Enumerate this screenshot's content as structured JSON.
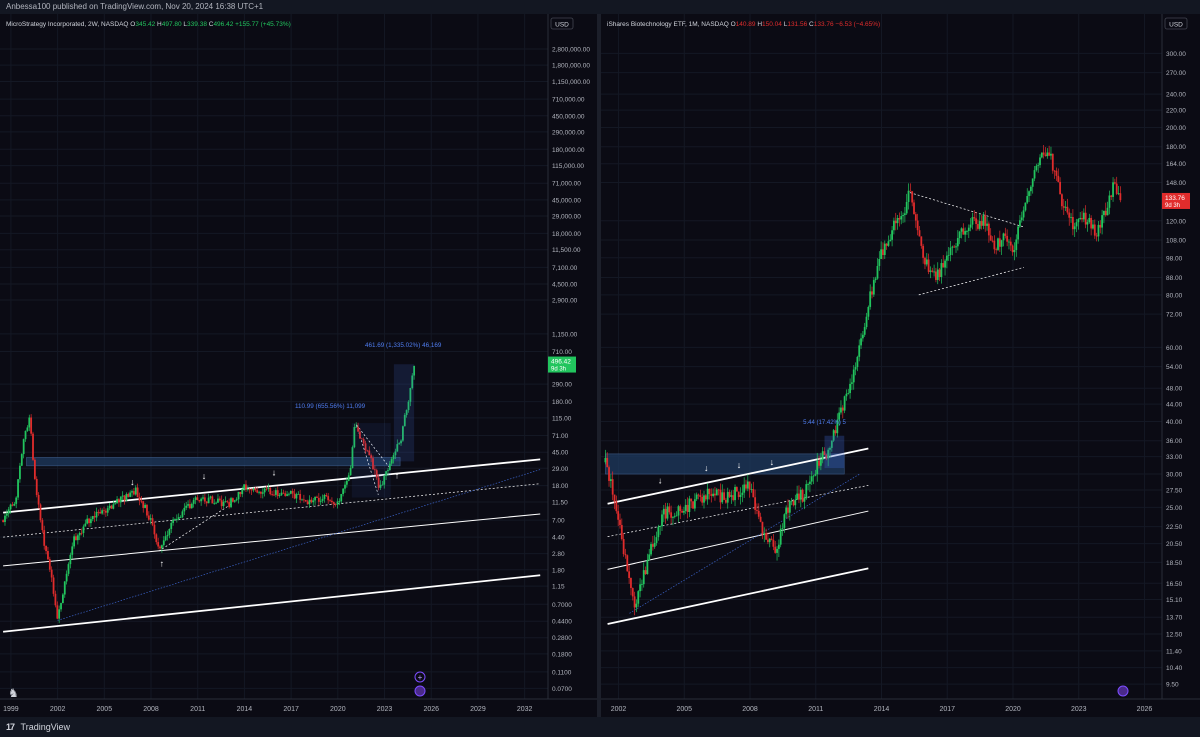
{
  "publish_line": "Anbessa100 published on TradingView.com, Nov 20, 2024 16:38 UTC+1",
  "brand": "TradingView",
  "colors": {
    "background": "#0b0b14",
    "up_candle": "#22c55e",
    "down_candle": "#e02c2c",
    "trendline": "#ffffff",
    "zone": "#1e3a5f",
    "projection": "#3b63c9",
    "price_tag_left": "#22c55e",
    "price_tag_right": "#e02c2c"
  },
  "chart_data": [
    {
      "type": "candlestick",
      "legend": {
        "title": "MicroStrategy Incorporated, 2W, NASDAQ",
        "o_label": "O",
        "o": "345.42",
        "h_label": "H",
        "h": "497.80",
        "l_label": "L",
        "l": "339.38",
        "c_label": "C",
        "c": "496.42",
        "change": "+155.77 (+45.73%)"
      },
      "currency": "USD",
      "yscale": "log",
      "ylim": [
        0.06,
        4000000
      ],
      "xlim": [
        1998.3,
        2033.5
      ],
      "y_ticks": [
        "2,800,000.00",
        "1,800,000.00",
        "1,150,000.00",
        "710,000.00",
        "450,000.00",
        "290,000.00",
        "180,000.00",
        "115,000.00",
        "71,000.00",
        "45,000.00",
        "29,000.00",
        "18,000.00",
        "11,500.00",
        "7,100.00",
        "4,500.00",
        "2,900.00",
        "1,150.00",
        "710.00",
        "290.00",
        "180.00",
        "115.00",
        "71.00",
        "45.00",
        "29.00",
        "18.00",
        "11.50",
        "7.00",
        "4.40",
        "2.80",
        "1.80",
        "1.15",
        "0.7000",
        "0.4400",
        "0.2800",
        "0.1800",
        "0.1100",
        "0.0700"
      ],
      "x_ticks": [
        "1999",
        "2002",
        "2005",
        "2008",
        "2011",
        "2014",
        "2017",
        "2020",
        "2023",
        "2026",
        "2029",
        "2032"
      ],
      "price_tag": "496.42",
      "price_tag_sub": "9d 3h",
      "annotations": [
        "461.69 (1,335.02%) 46,169",
        "110.99 (655.56%) 11,099"
      ],
      "price_path": [
        [
          1998.5,
          7
        ],
        [
          1999.3,
          12
        ],
        [
          1999.8,
          60
        ],
        [
          2000.2,
          120
        ],
        [
          2000.5,
          25
        ],
        [
          2001.0,
          5
        ],
        [
          2001.6,
          1.6
        ],
        [
          2002.0,
          0.45
        ],
        [
          2002.5,
          1.4
        ],
        [
          2003.0,
          4
        ],
        [
          2004.0,
          7
        ],
        [
          2005.0,
          9
        ],
        [
          2006.0,
          12
        ],
        [
          2007.0,
          16
        ],
        [
          2008.0,
          7
        ],
        [
          2008.5,
          3
        ],
        [
          2009.0,
          5
        ],
        [
          2010.0,
          9
        ],
        [
          2011.0,
          13
        ],
        [
          2012.0,
          12
        ],
        [
          2013.0,
          11
        ],
        [
          2014.0,
          17
        ],
        [
          2015.0,
          16
        ],
        [
          2016.0,
          15
        ],
        [
          2017.0,
          14
        ],
        [
          2018.0,
          12
        ],
        [
          2019.0,
          13
        ],
        [
          2020.0,
          11
        ],
        [
          2020.8,
          30
        ],
        [
          2021.1,
          95
        ],
        [
          2021.5,
          60
        ],
        [
          2022.0,
          45
        ],
        [
          2022.6,
          18
        ],
        [
          2023.0,
          22
        ],
        [
          2023.5,
          40
        ],
        [
          2024.0,
          60
        ],
        [
          2024.5,
          170
        ],
        [
          2024.9,
          496
        ]
      ]
    },
    {
      "type": "candlestick",
      "legend": {
        "title": "iShares Biotechnology ETF, 1M, NASDAQ",
        "o_label": "O",
        "o": "140.89",
        "h_label": "H",
        "h": "150.04",
        "l_label": "L",
        "l": "131.56",
        "c_label": "C",
        "c": "133.76",
        "change": "−6.53 (−4.65%)"
      },
      "currency": "USD",
      "yscale": "log",
      "ylim": [
        9,
        330
      ],
      "xlim": [
        2001.2,
        2026.8
      ],
      "y_ticks": [
        "300.00",
        "270.00",
        "240.00",
        "220.00",
        "200.00",
        "180.00",
        "164.00",
        "148.00",
        "120.00",
        "108.00",
        "98.00",
        "88.00",
        "80.00",
        "72.00",
        "60.00",
        "54.00",
        "48.00",
        "44.00",
        "40.00",
        "36.00",
        "33.00",
        "30.00",
        "27.50",
        "25.00",
        "22.50",
        "20.50",
        "18.50",
        "16.50",
        "15.10",
        "13.70",
        "12.50",
        "11.40",
        "10.40",
        "9.50"
      ],
      "x_ticks": [
        "2002",
        "2005",
        "2008",
        "2011",
        "2014",
        "2017",
        "2020",
        "2023",
        "2026"
      ],
      "price_tag": "133.76",
      "price_tag_sub": "9d 3h",
      "annotations": [
        "5.44 (17.42%) 5"
      ],
      "price_path": [
        [
          2001.4,
          32
        ],
        [
          2001.8,
          26
        ],
        [
          2002.3,
          19
        ],
        [
          2002.7,
          14.5
        ],
        [
          2003.0,
          16
        ],
        [
          2003.5,
          20
        ],
        [
          2004.0,
          24
        ],
        [
          2005.0,
          25
        ],
        [
          2006.0,
          27
        ],
        [
          2007.0,
          26.5
        ],
        [
          2008.0,
          28
        ],
        [
          2008.7,
          21
        ],
        [
          2009.2,
          20
        ],
        [
          2009.7,
          25
        ],
        [
          2010.5,
          27
        ],
        [
          2011.0,
          31
        ],
        [
          2011.5,
          34
        ],
        [
          2012.0,
          40
        ],
        [
          2012.5,
          48
        ],
        [
          2013.0,
          60
        ],
        [
          2013.5,
          80
        ],
        [
          2014.0,
          100
        ],
        [
          2014.5,
          115
        ],
        [
          2015.0,
          125
        ],
        [
          2015.3,
          140
        ],
        [
          2015.7,
          115
        ],
        [
          2016.0,
          95
        ],
        [
          2016.5,
          88
        ],
        [
          2017.0,
          100
        ],
        [
          2017.5,
          110
        ],
        [
          2018.0,
          118
        ],
        [
          2018.7,
          120
        ],
        [
          2019.2,
          105
        ],
        [
          2019.7,
          110
        ],
        [
          2020.0,
          100
        ],
        [
          2020.5,
          130
        ],
        [
          2021.0,
          160
        ],
        [
          2021.5,
          175
        ],
        [
          2021.8,
          165
        ],
        [
          2022.3,
          130
        ],
        [
          2022.7,
          118
        ],
        [
          2023.2,
          125
        ],
        [
          2023.8,
          110
        ],
        [
          2024.2,
          125
        ],
        [
          2024.6,
          148
        ],
        [
          2024.9,
          133.76
        ]
      ]
    }
  ]
}
